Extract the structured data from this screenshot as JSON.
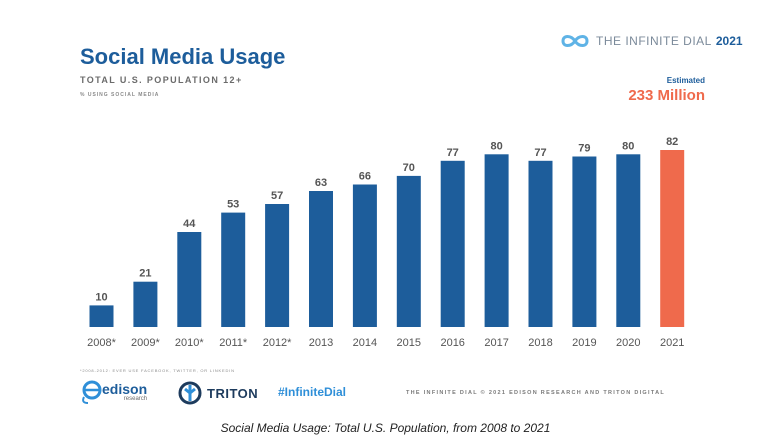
{
  "header": {
    "title": "Social Media Usage",
    "subtitle": "TOTAL U.S. POPULATION 12+",
    "subsubtitle": "% USING SOCIAL MEDIA"
  },
  "brand": {
    "icon": "infinity-icon",
    "text": "THE INFINITE DIAL",
    "year": "2021"
  },
  "estimate": {
    "label": "Estimated",
    "value": "233 Million"
  },
  "chart_data": {
    "type": "bar",
    "categories": [
      "2008*",
      "2009*",
      "2010*",
      "2011*",
      "2012*",
      "2013",
      "2014",
      "2015",
      "2016",
      "2017",
      "2018",
      "2019",
      "2020",
      "2021"
    ],
    "values": [
      10,
      21,
      44,
      53,
      57,
      63,
      66,
      70,
      77,
      80,
      77,
      79,
      80,
      82
    ],
    "title": "Social Media Usage",
    "subtitle": "TOTAL U.S. POPULATION 12+",
    "ylabel": "% USING SOCIAL MEDIA",
    "xlabel": "",
    "ylim": [
      0,
      100
    ],
    "grid": false,
    "data_labels": true,
    "colors": {
      "bar": "#1d5d9b",
      "highlight": "#ef6a4c"
    },
    "highlight_index": 13
  },
  "footer": {
    "footnote": "*2008-2012: EVER USE FACEBOOK, TWITTER, OR LINKEDIN",
    "edison_name": "edison",
    "edison_sub": "research",
    "triton_name": "TRITON",
    "hashtag": "#InfiniteDial",
    "copyright": "THE INFINITE DIAL  © 2021 EDISON RESEARCH AND TRITON DIGITAL"
  },
  "caption": "Social Media Usage: Total U.S. Population, from 2008 to 2021"
}
